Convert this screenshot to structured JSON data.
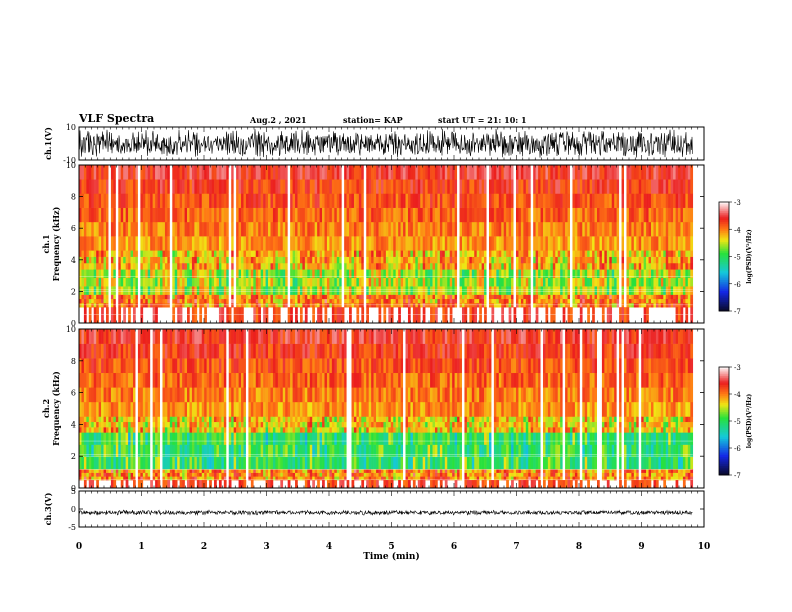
{
  "header": {
    "title": "VLF Spectra",
    "date": "Aug.2 , 2021",
    "station": "station= KAP",
    "start": "start UT = 21: 10: 1"
  },
  "chart_data": [
    {
      "type": "line",
      "name": "ch1-waveform",
      "ylabel": "ch.1(V)",
      "ylim": [
        -10,
        10
      ],
      "yticks": [
        "10",
        "-10"
      ],
      "xlim": [
        0,
        10
      ],
      "color": "#000000"
    },
    {
      "type": "heatmap",
      "name": "ch1-spectrogram",
      "ylabel_line1": "ch.1",
      "ylabel_line2": "Frequency (kHz)",
      "xlim": [
        0,
        10
      ],
      "ylim": [
        0,
        10
      ],
      "yticks": [
        "0",
        "2",
        "4",
        "6",
        "8",
        "10"
      ],
      "colorbar": {
        "label": "log(PSD)(V²/Hz)",
        "range": [
          -7,
          -3
        ],
        "ticks": [
          "-3",
          "-4",
          "-5",
          "-6",
          "-7"
        ]
      },
      "bands": [
        {
          "from_khz": 1.0,
          "to_khz": 1.8,
          "level": -4.0
        },
        {
          "from_khz": 1.8,
          "to_khz": 3.4,
          "level": -4.6
        },
        {
          "from_khz": 3.4,
          "to_khz": 4.6,
          "level": -4.2
        },
        {
          "from_khz": 4.6,
          "to_khz": 10.0,
          "level": -3.2
        }
      ]
    },
    {
      "type": "heatmap",
      "name": "ch2-spectrogram",
      "ylabel_line1": "ch.2",
      "ylabel_line2": "Frequency (kHz)",
      "xlim": [
        0,
        10
      ],
      "ylim": [
        0,
        10
      ],
      "yticks": [
        "0",
        "2",
        "4",
        "6",
        "8",
        "10"
      ],
      "colorbar": {
        "label": "log(PSD)(V²/Hz)",
        "range": [
          -7,
          -3
        ],
        "ticks": [
          "-3",
          "-4",
          "-5",
          "-6",
          "-7"
        ]
      },
      "bands": [
        {
          "from_khz": 0.5,
          "to_khz": 1.2,
          "level": -4.0
        },
        {
          "from_khz": 1.2,
          "to_khz": 3.5,
          "level": -5.0
        },
        {
          "from_khz": 3.5,
          "to_khz": 4.5,
          "level": -4.3
        },
        {
          "from_khz": 4.5,
          "to_khz": 10.0,
          "level": -3.2
        }
      ]
    },
    {
      "type": "line",
      "name": "ch3-waveform",
      "ylabel": "ch.3(V)",
      "ylim": [
        -5,
        5
      ],
      "yticks": [
        "5",
        "0",
        "-5"
      ],
      "xlim": [
        0,
        10
      ],
      "color": "#000000",
      "offset": -1.0
    }
  ],
  "xaxis": {
    "label": "Time (min)",
    "ticks": [
      "0",
      "1",
      "2",
      "3",
      "4",
      "5",
      "6",
      "7",
      "8",
      "9",
      "10"
    ],
    "data_end_min": 9.82
  }
}
